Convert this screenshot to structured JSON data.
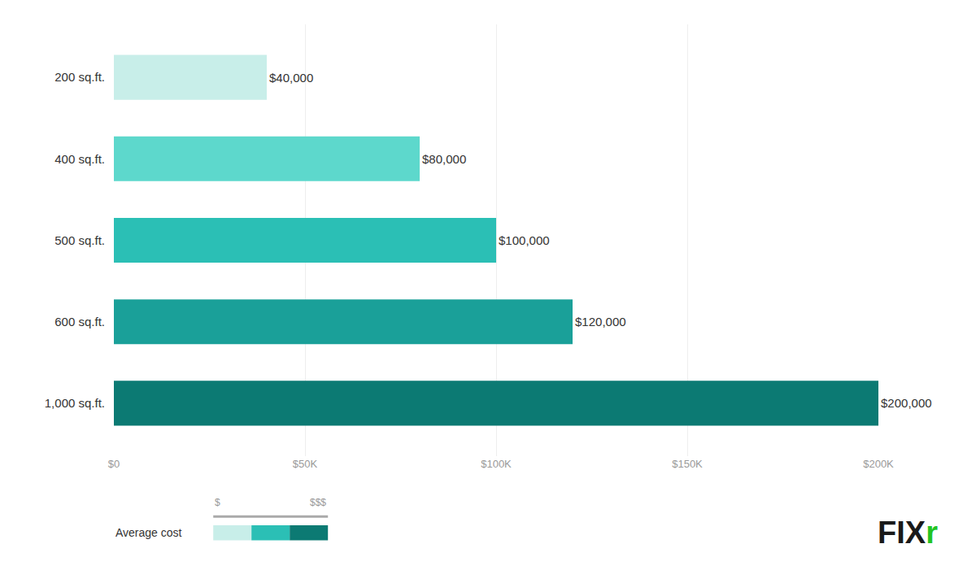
{
  "chart_data": {
    "type": "bar",
    "orientation": "horizontal",
    "categories": [
      "200 sq.ft.",
      "400 sq.ft.",
      "500 sq.ft.",
      "600 sq.ft.",
      "1,000 sq.ft."
    ],
    "values": [
      40000,
      80000,
      100000,
      120000,
      200000
    ],
    "value_labels": [
      "$40,000",
      "$80,000",
      "$100,000",
      "$120,000",
      "$200,000"
    ],
    "colors": [
      "#c8eee9",
      "#5dd8cc",
      "#2bbfb5",
      "#1aa099",
      "#0c7a73"
    ],
    "xlim": [
      0,
      200000
    ],
    "xticks": [
      {
        "value": 0,
        "label": "$0"
      },
      {
        "value": 50000,
        "label": "$50K"
      },
      {
        "value": 100000,
        "label": "$100K"
      },
      {
        "value": 150000,
        "label": "$150K"
      },
      {
        "value": 200000,
        "label": "$200K"
      }
    ],
    "grid": true,
    "data_labels": true,
    "annotations": [
      {
        "text": "Average cost"
      },
      {
        "text": "$"
      },
      {
        "text": "$$$"
      },
      {
        "text": "FIX",
        "color": "#1a1a1a"
      },
      {
        "text": "r",
        "color": "#22c422"
      }
    ]
  }
}
